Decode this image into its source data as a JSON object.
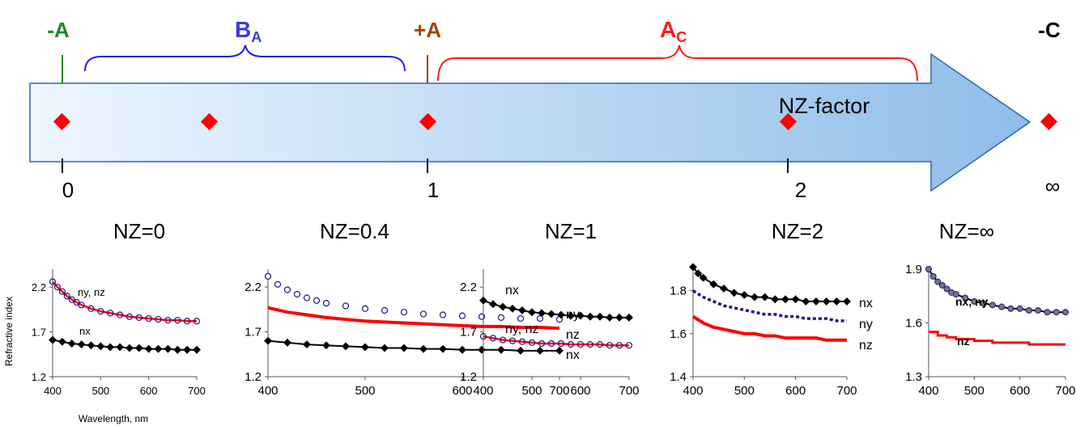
{
  "header": {
    "minus_a": "-A",
    "b_main": "B",
    "b_sub": "A",
    "plus_a": "+A",
    "a_main": "A",
    "a_sub": "C",
    "minus_c": "-C"
  },
  "colors": {
    "minus_a": "#1e8a1e",
    "b_a": "#3a3adb",
    "plus_a": "#a0450f",
    "a_c": "#ff1a1a",
    "minus_c": "#000000",
    "marker": "#ff0000",
    "arrow_light": "#eef6ff",
    "arrow_dark": "#8fbde8",
    "series_black": "#000000",
    "series_red": "#ff0000",
    "series_blue": "#1a1a8a"
  },
  "axis": {
    "name": "NZ-factor",
    "ticks": [
      "0",
      "1",
      "2",
      "∞"
    ]
  },
  "nz_labels": [
    "NZ=0",
    "NZ=0.4",
    "NZ=1",
    "NZ=2",
    "NZ=∞"
  ],
  "marker_positions": [
    0,
    0.4,
    1,
    2,
    "∞"
  ],
  "chart_data": [
    {
      "type": "line",
      "title": "NZ=0",
      "ylabel": "Refractive index",
      "xlabel": "Wavelength, nm",
      "xlim": [
        400,
        700
      ],
      "ylim": [
        1.2,
        2.4
      ],
      "yticks": [
        "1.2",
        "1.7",
        "2.2"
      ],
      "xticks": [
        "400",
        "500",
        "600",
        "700"
      ],
      "series": [
        {
          "label": "ny, nz",
          "style": "open-circle-red",
          "x": [
            400,
            410,
            420,
            430,
            440,
            450,
            460,
            480,
            500,
            520,
            540,
            560,
            580,
            600,
            620,
            640,
            660,
            680,
            700
          ],
          "y": [
            2.26,
            2.2,
            2.15,
            2.1,
            2.06,
            2.03,
            2.0,
            1.96,
            1.93,
            1.91,
            1.89,
            1.87,
            1.86,
            1.85,
            1.84,
            1.83,
            1.83,
            1.82,
            1.82
          ]
        },
        {
          "label": "nx",
          "style": "black-diamond",
          "x": [
            400,
            420,
            440,
            460,
            480,
            500,
            520,
            540,
            560,
            580,
            600,
            620,
            640,
            660,
            680,
            700
          ],
          "y": [
            1.61,
            1.59,
            1.57,
            1.56,
            1.55,
            1.54,
            1.53,
            1.53,
            1.52,
            1.52,
            1.51,
            1.51,
            1.51,
            1.5,
            1.5,
            1.5
          ]
        }
      ]
    },
    {
      "type": "line",
      "title": "NZ=0.4",
      "xlim": [
        400,
        700
      ],
      "ylim": [
        1.2,
        2.4
      ],
      "yticks": [
        "1.2",
        "1.7",
        "2.2"
      ],
      "xticks": [
        "400",
        "500",
        "600",
        "700"
      ],
      "series": [
        {
          "label": "ny",
          "style": "open-circle-blue",
          "x": [
            400,
            410,
            420,
            430,
            440,
            450,
            460,
            480,
            500,
            520,
            540,
            560,
            580,
            600,
            620,
            640,
            660,
            680,
            700
          ],
          "y": [
            2.32,
            2.23,
            2.17,
            2.12,
            2.08,
            2.05,
            2.02,
            1.99,
            1.96,
            1.94,
            1.92,
            1.9,
            1.89,
            1.88,
            1.87,
            1.86,
            1.85,
            1.85,
            1.84
          ]
        },
        {
          "label": "nz",
          "style": "red-line",
          "x": [
            400,
            420,
            440,
            460,
            480,
            500,
            520,
            540,
            560,
            580,
            600,
            620,
            640,
            660,
            680,
            700
          ],
          "y": [
            1.97,
            1.92,
            1.89,
            1.86,
            1.84,
            1.82,
            1.81,
            1.8,
            1.79,
            1.78,
            1.77,
            1.76,
            1.76,
            1.75,
            1.75,
            1.74
          ]
        },
        {
          "label": "nx",
          "style": "black-diamond",
          "x": [
            400,
            420,
            440,
            460,
            480,
            500,
            520,
            540,
            560,
            580,
            600,
            620,
            640,
            660,
            680,
            700
          ],
          "y": [
            1.6,
            1.58,
            1.56,
            1.55,
            1.54,
            1.53,
            1.52,
            1.52,
            1.51,
            1.51,
            1.5,
            1.5,
            1.5,
            1.49,
            1.49,
            1.49
          ]
        }
      ]
    },
    {
      "type": "line",
      "title": "NZ=1",
      "xlim": [
        400,
        700
      ],
      "ylim": [
        1.2,
        2.4
      ],
      "yticks": [
        "1.2",
        "1.7",
        "2.2"
      ],
      "xticks": [
        "400",
        "500",
        "600",
        "700"
      ],
      "series": [
        {
          "label": "nx",
          "style": "black-diamond",
          "x": [
            400,
            420,
            440,
            460,
            480,
            500,
            520,
            540,
            560,
            580,
            600,
            620,
            640,
            660,
            680,
            700
          ],
          "y": [
            2.05,
            2.01,
            1.98,
            1.96,
            1.94,
            1.92,
            1.91,
            1.9,
            1.89,
            1.88,
            1.88,
            1.87,
            1.87,
            1.86,
            1.86,
            1.86
          ]
        },
        {
          "label": "ny, nz",
          "style": "open-circle-red",
          "x": [
            400,
            420,
            440,
            460,
            480,
            500,
            520,
            540,
            560,
            580,
            600,
            620,
            640,
            660,
            680,
            700
          ],
          "y": [
            1.65,
            1.63,
            1.61,
            1.6,
            1.59,
            1.58,
            1.57,
            1.57,
            1.57,
            1.56,
            1.56,
            1.56,
            1.56,
            1.55,
            1.55,
            1.55
          ]
        }
      ]
    },
    {
      "type": "line",
      "title": "NZ=2",
      "xlim": [
        400,
        700
      ],
      "ylim": [
        1.4,
        1.9
      ],
      "yticks": [
        "1.4",
        "1.6",
        "1.8"
      ],
      "xticks": [
        "400",
        "500",
        "600",
        "700"
      ],
      "series": [
        {
          "label": "nx",
          "style": "black-diamond",
          "x": [
            400,
            410,
            420,
            440,
            460,
            480,
            500,
            520,
            540,
            560,
            580,
            600,
            620,
            640,
            660,
            680,
            700
          ],
          "y": [
            1.91,
            1.88,
            1.86,
            1.83,
            1.81,
            1.79,
            1.78,
            1.77,
            1.77,
            1.76,
            1.76,
            1.76,
            1.75,
            1.75,
            1.75,
            1.75,
            1.75
          ]
        },
        {
          "label": "ny",
          "style": "blue-dotted",
          "x": [
            400,
            420,
            440,
            460,
            480,
            500,
            520,
            540,
            560,
            580,
            600,
            620,
            640,
            660,
            680,
            700
          ],
          "y": [
            1.8,
            1.77,
            1.75,
            1.73,
            1.72,
            1.71,
            1.7,
            1.69,
            1.69,
            1.68,
            1.68,
            1.67,
            1.67,
            1.67,
            1.66,
            1.66
          ]
        },
        {
          "label": "nz",
          "style": "red-line",
          "x": [
            400,
            420,
            440,
            460,
            480,
            500,
            520,
            540,
            560,
            580,
            600,
            620,
            640,
            660,
            680,
            700
          ],
          "y": [
            1.68,
            1.65,
            1.63,
            1.62,
            1.61,
            1.6,
            1.6,
            1.59,
            1.59,
            1.58,
            1.58,
            1.58,
            1.58,
            1.57,
            1.57,
            1.57
          ]
        }
      ]
    },
    {
      "type": "line",
      "title": "NZ=∞",
      "xlim": [
        400,
        700
      ],
      "ylim": [
        1.3,
        1.9
      ],
      "yticks": [
        "1.3",
        "1.6",
        "1.9"
      ],
      "xticks": [
        "400",
        "500",
        "600",
        "700"
      ],
      "series": [
        {
          "label": "nx, ny",
          "style": "circle-black",
          "x": [
            400,
            410,
            420,
            430,
            440,
            450,
            460,
            480,
            500,
            520,
            540,
            560,
            580,
            600,
            620,
            640,
            660,
            680,
            700
          ],
          "y": [
            1.9,
            1.86,
            1.83,
            1.81,
            1.79,
            1.77,
            1.76,
            1.74,
            1.72,
            1.71,
            1.7,
            1.69,
            1.68,
            1.68,
            1.67,
            1.67,
            1.66,
            1.66,
            1.66
          ]
        },
        {
          "label": "nz",
          "style": "red-step",
          "x": [
            400,
            420,
            440,
            460,
            480,
            500,
            520,
            540,
            560,
            580,
            600,
            620,
            640,
            660,
            680,
            700
          ],
          "y": [
            1.55,
            1.53,
            1.52,
            1.51,
            1.51,
            1.5,
            1.5,
            1.49,
            1.49,
            1.49,
            1.49,
            1.48,
            1.48,
            1.48,
            1.48,
            1.48
          ]
        }
      ]
    }
  ]
}
